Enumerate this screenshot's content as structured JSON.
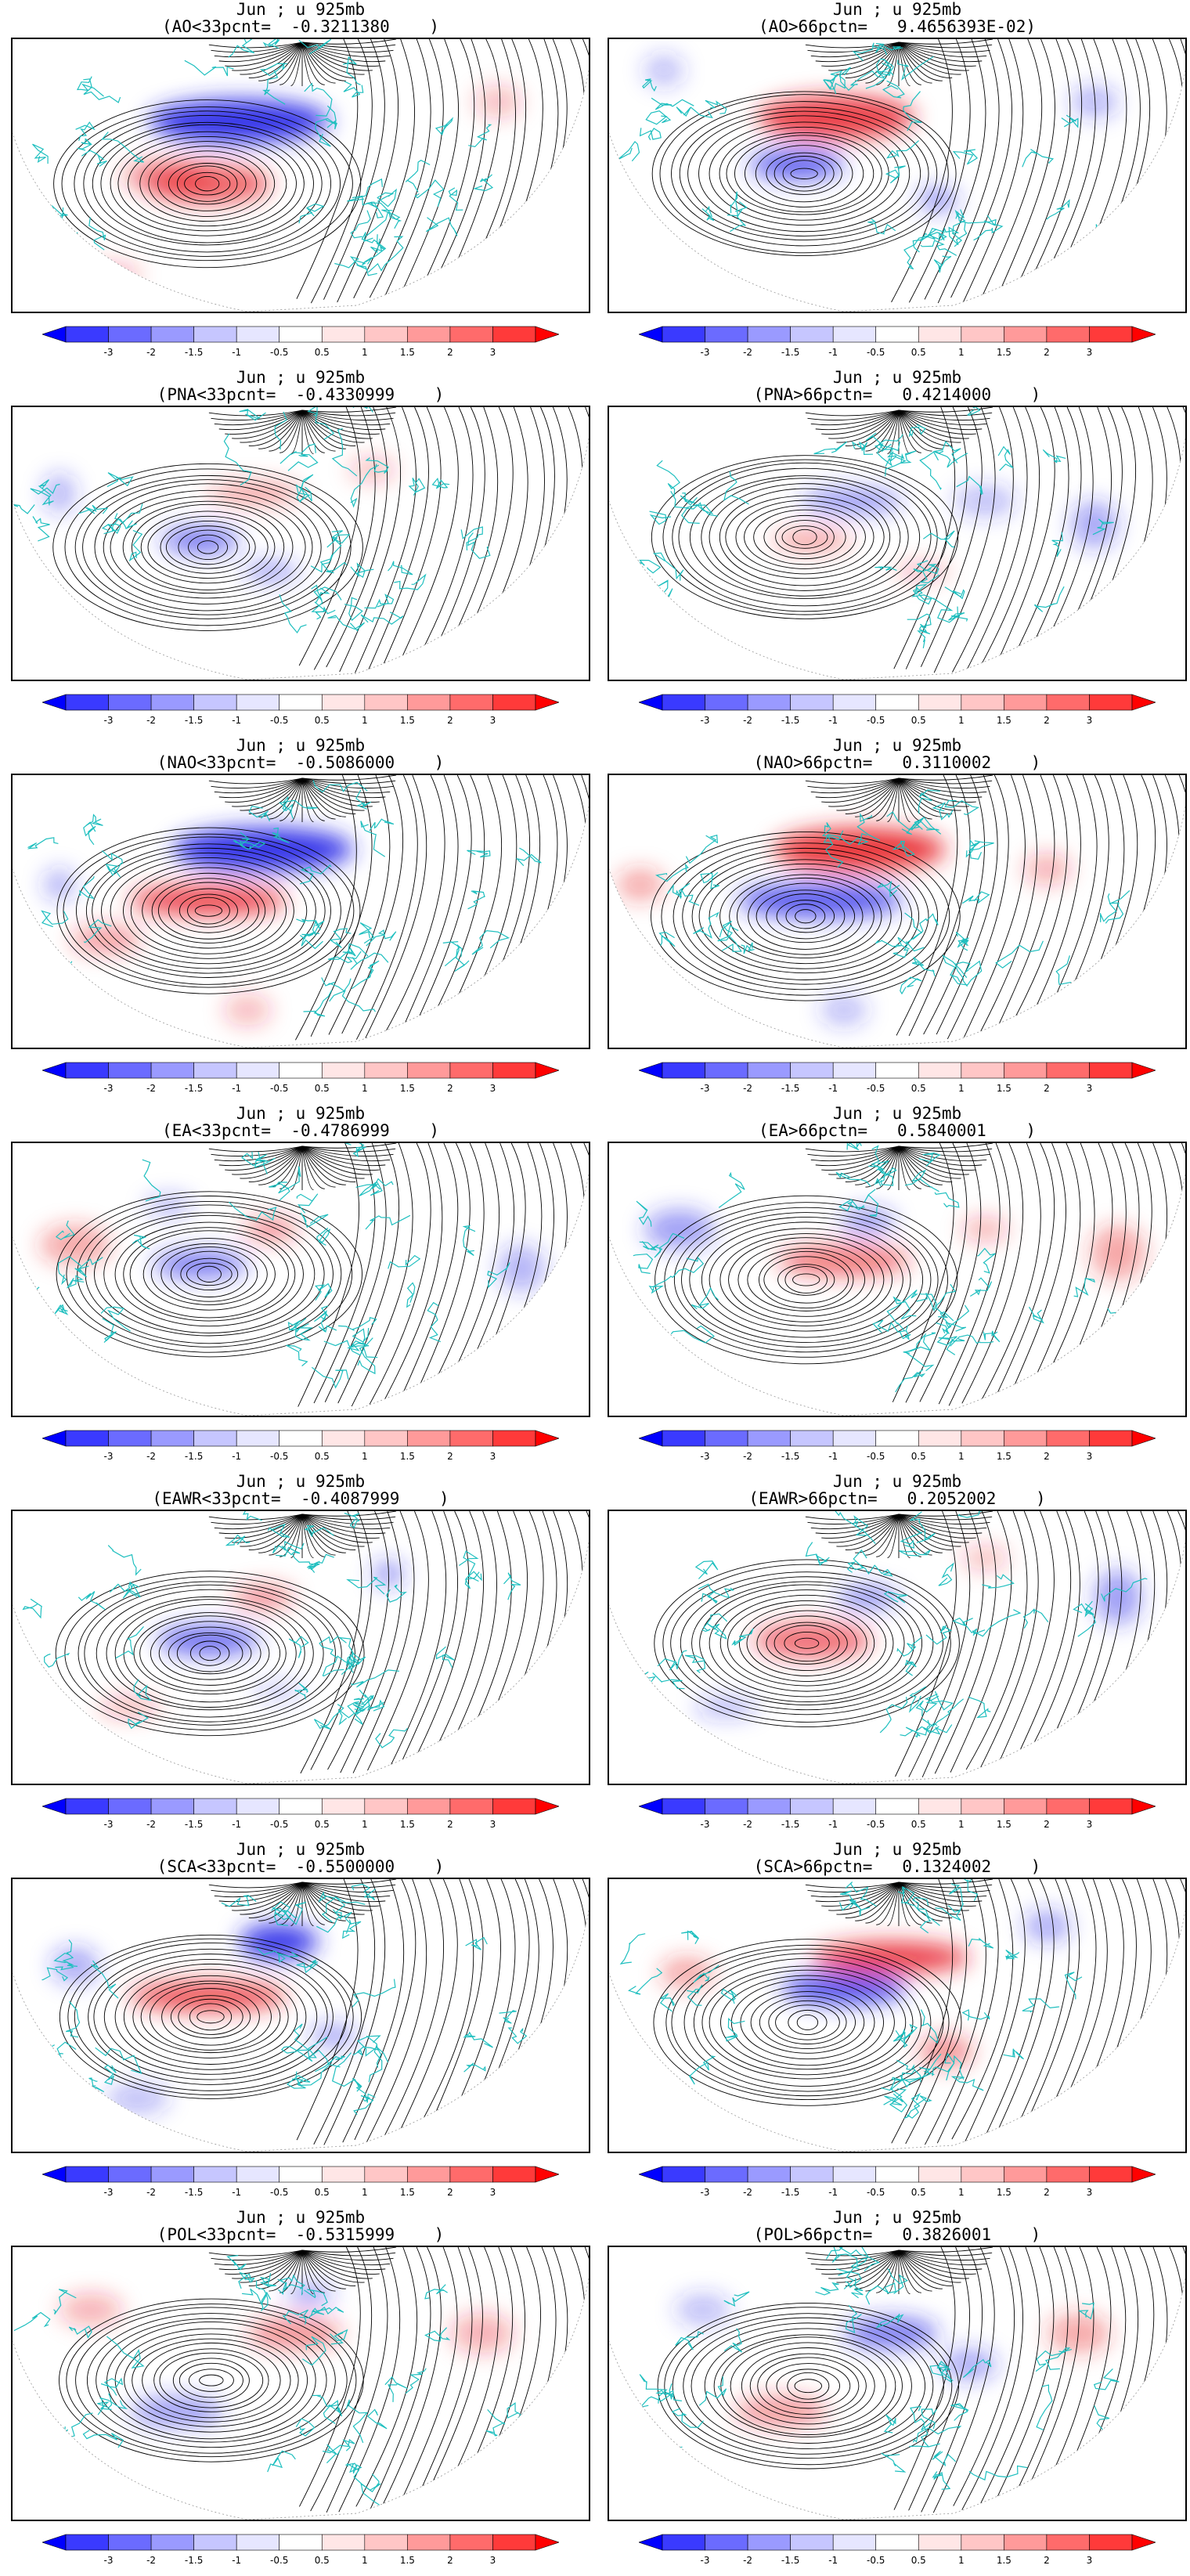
{
  "figure": {
    "panels": [
      {
        "line1": "Jun ; u 925mb",
        "line2": "(AO<33pcnt=  -0.3211380    )",
        "pattern": "AO",
        "phase": "low"
      },
      {
        "line1": "Jun ; u 925mb",
        "line2": "(AO>66pctn=   9.4656393E-02)",
        "pattern": "AO",
        "phase": "high"
      },
      {
        "line1": "Jun ; u 925mb",
        "line2": "(PNA<33pcnt=  -0.4330999    )",
        "pattern": "PNA",
        "phase": "low"
      },
      {
        "line1": "Jun ; u 925mb",
        "line2": "(PNA>66pctn=   0.4214000    )",
        "pattern": "PNA",
        "phase": "high"
      },
      {
        "line1": "Jun ; u 925mb",
        "line2": "(NAO<33pcnt=  -0.5086000    )",
        "pattern": "NAO",
        "phase": "low"
      },
      {
        "line1": "Jun ; u 925mb",
        "line2": "(NAO>66pctn=   0.3110002    )",
        "pattern": "NAO",
        "phase": "high"
      },
      {
        "line1": "Jun ; u 925mb",
        "line2": "(EA<33pcnt=  -0.4786999    )",
        "pattern": "EA",
        "phase": "low"
      },
      {
        "line1": "Jun ; u 925mb",
        "line2": "(EA>66pctn=   0.5840001    )",
        "pattern": "EA",
        "phase": "high"
      },
      {
        "line1": "Jun ; u 925mb",
        "line2": "(EAWR<33pcnt=  -0.4087999    )",
        "pattern": "EAWR",
        "phase": "low"
      },
      {
        "line1": "Jun ; u 925mb",
        "line2": "(EAWR>66pctn=   0.2052002    )",
        "pattern": "EAWR",
        "phase": "high"
      },
      {
        "line1": "Jun ; u 925mb",
        "line2": "(SCA<33pcnt=  -0.5500000    )",
        "pattern": "SCA",
        "phase": "low"
      },
      {
        "line1": "Jun ; u 925mb",
        "line2": "(SCA>66pctn=   0.1324002    )",
        "pattern": "SCA",
        "phase": "high"
      },
      {
        "line1": "Jun ; u 925mb",
        "line2": "(POL<33pcnt=  -0.5315999    )",
        "pattern": "POL",
        "phase": "low"
      },
      {
        "line1": "Jun ; u 925mb",
        "line2": "(POL>66pctn=   0.3826001    )",
        "pattern": "POL",
        "phase": "high"
      }
    ],
    "colorbar": {
      "labels": [
        "-3",
        "-2",
        "-1.5",
        "-1",
        "-0.5",
        "0.5",
        "1",
        "1.5",
        "2",
        "3"
      ],
      "colors": [
        "#0000ff",
        "#3a3aff",
        "#6b6bff",
        "#9a9aff",
        "#c6c6ff",
        "#e6e6ff",
        "#ffffff",
        "#ffe6e6",
        "#ffc6c6",
        "#ff9a9a",
        "#ff6b6b",
        "#ff3a3a",
        "#ff0000"
      ]
    },
    "map_style": {
      "coastline_color": "#1fbfbf",
      "streamline_color": "#000000",
      "positive_color": "#e8212a",
      "negative_color": "#2a2ae8"
    }
  }
}
